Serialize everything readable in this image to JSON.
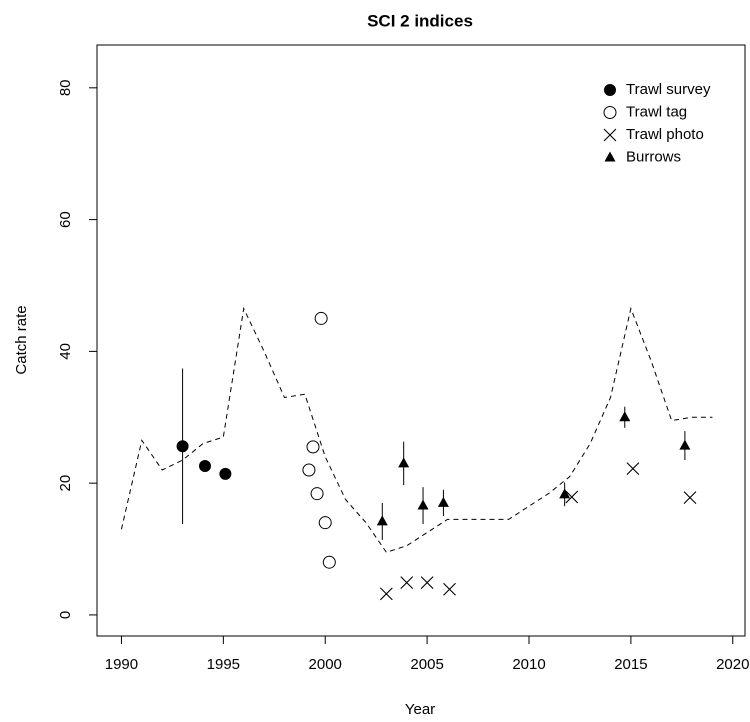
{
  "chart_data": {
    "type": "scatter",
    "title": "SCI 2 indices",
    "x_label": "Year",
    "y_label": "Catch rate",
    "xlim": [
      1988.8,
      2020.6
    ],
    "xticks": [
      1990,
      1995,
      2000,
      2005,
      2010,
      2015,
      2020
    ],
    "ylim": [
      -3.2,
      86.5
    ],
    "yticks": [
      0,
      20,
      40,
      60,
      80
    ],
    "legend": "top-right",
    "grid": false,
    "series": [
      {
        "type": "line",
        "dash": true,
        "color": "#000000",
        "x": [
          1990,
          1991,
          1992,
          1993,
          1994,
          1995,
          1996,
          1997,
          1998,
          1999,
          2000,
          2001,
          2002,
          2003,
          2004,
          2005,
          2006,
          2007,
          2008,
          2009,
          2010,
          2011,
          2012,
          2013,
          2014,
          2015,
          2016,
          2017,
          2018,
          2019
        ],
        "values": [
          13,
          26.5,
          22,
          23.5,
          26,
          27,
          46.5,
          40,
          33,
          33.5,
          24,
          17.5,
          14,
          9.5,
          10.5,
          12.5,
          14.5,
          14.5,
          14.5,
          14.5,
          16.5,
          18.5,
          21,
          26,
          33,
          46.5,
          38.5,
          29.5,
          30,
          30
        ]
      },
      {
        "name": "Trawl survey",
        "type": "points",
        "marker": "circle-filled",
        "color": "#000000",
        "x": [
          1993,
          1994.1,
          1995.1
        ],
        "values": [
          25.6,
          22.6,
          21.4
        ],
        "errors": [
          11.8,
          null,
          null
        ]
      },
      {
        "name": "Trawl tag",
        "type": "points",
        "marker": "circle-open",
        "color": "#000000",
        "x": [
          1999.2,
          1999.4,
          1999.6,
          1999.8,
          2000.0,
          2000.2
        ],
        "values": [
          22.0,
          25.5,
          18.4,
          45,
          14.0,
          8.0
        ]
      },
      {
        "name": "Trawl photo",
        "type": "points",
        "marker": "cross",
        "color": "#000000",
        "x": [
          2003,
          2004,
          2005,
          2006.1,
          2012.1,
          2015.1,
          2017.9
        ],
        "values": [
          3.2,
          4.9,
          4.9,
          3.9,
          17.9,
          22.2,
          17.8
        ]
      },
      {
        "name": "Burrows",
        "type": "points",
        "marker": "triangle",
        "color": "#000000",
        "x": [
          2002.8,
          2003.85,
          2004.8,
          2005.8,
          2011.75,
          2014.7,
          2017.65
        ],
        "values": [
          14.2,
          23,
          16.6,
          17,
          18.3,
          30,
          25.7
        ],
        "errors": [
          2.8,
          3.3,
          2.8,
          2.0,
          1.8,
          1.6,
          2.2
        ]
      }
    ]
  }
}
